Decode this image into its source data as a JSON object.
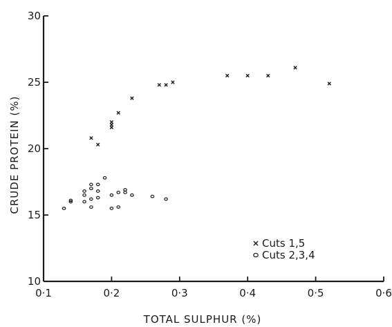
{
  "chart_data": {
    "type": "scatter",
    "xlabel": "TOTAL SULPHUR (%)",
    "ylabel": "CRUDE PROTEIN (%)",
    "xlim": [
      0.1,
      0.6
    ],
    "ylim": [
      10,
      30
    ],
    "x_ticks": [
      0.1,
      0.2,
      0.3,
      0.4,
      0.5,
      0.6
    ],
    "x_tick_labels": [
      "0·1",
      "0·2",
      "0·3",
      "0·4",
      "0·5",
      "0·6"
    ],
    "y_ticks": [
      10,
      15,
      20,
      25,
      30
    ],
    "y_tick_labels": [
      "10",
      "15",
      "20",
      "25",
      "30"
    ],
    "legend_position": "lower-right",
    "series": [
      {
        "name": "Cuts 1,5",
        "marker": "x",
        "legend_symbol": "×",
        "points": [
          [
            0.17,
            20.8
          ],
          [
            0.18,
            20.3
          ],
          [
            0.2,
            21.6
          ],
          [
            0.2,
            21.8
          ],
          [
            0.2,
            22.0
          ],
          [
            0.21,
            22.7
          ],
          [
            0.23,
            23.8
          ],
          [
            0.27,
            24.8
          ],
          [
            0.28,
            24.8
          ],
          [
            0.29,
            25.0
          ],
          [
            0.37,
            25.5
          ],
          [
            0.4,
            25.5
          ],
          [
            0.43,
            25.5
          ],
          [
            0.47,
            26.1
          ],
          [
            0.52,
            24.9
          ]
        ]
      },
      {
        "name": "Cuts 2,3,4",
        "marker": "o",
        "legend_symbol": "o",
        "points": [
          [
            0.13,
            15.5
          ],
          [
            0.14,
            16.0
          ],
          [
            0.14,
            16.1
          ],
          [
            0.16,
            16.0
          ],
          [
            0.16,
            16.5
          ],
          [
            0.16,
            16.8
          ],
          [
            0.17,
            15.6
          ],
          [
            0.17,
            16.2
          ],
          [
            0.17,
            17.0
          ],
          [
            0.17,
            17.3
          ],
          [
            0.18,
            16.3
          ],
          [
            0.18,
            16.8
          ],
          [
            0.18,
            17.3
          ],
          [
            0.19,
            17.8
          ],
          [
            0.2,
            15.5
          ],
          [
            0.2,
            16.5
          ],
          [
            0.21,
            15.6
          ],
          [
            0.21,
            16.7
          ],
          [
            0.22,
            16.7
          ],
          [
            0.22,
            16.9
          ],
          [
            0.23,
            16.5
          ],
          [
            0.26,
            16.4
          ],
          [
            0.28,
            16.2
          ]
        ]
      }
    ]
  }
}
